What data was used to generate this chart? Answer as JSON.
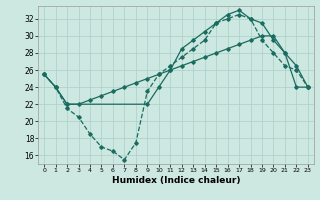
{
  "xlabel": "Humidex (Indice chaleur)",
  "bg_color": "#cce8e0",
  "grid_color": "#aacfc8",
  "line_color": "#1a6b60",
  "xlim": [
    -0.5,
    23.5
  ],
  "ylim": [
    15,
    33.5
  ],
  "xticks": [
    0,
    1,
    2,
    3,
    4,
    5,
    6,
    7,
    8,
    9,
    10,
    11,
    12,
    13,
    14,
    15,
    16,
    17,
    18,
    19,
    20,
    21,
    22,
    23
  ],
  "yticks": [
    16,
    18,
    20,
    22,
    24,
    26,
    28,
    30,
    32
  ],
  "line1_x": [
    0,
    1,
    2,
    3,
    4,
    5,
    6,
    7,
    8,
    9,
    10,
    11,
    12,
    13,
    14,
    15,
    16,
    17,
    18,
    19,
    20,
    21,
    22,
    23
  ],
  "line1_y": [
    25.5,
    24.0,
    21.5,
    20.5,
    18.5,
    17.0,
    16.5,
    15.5,
    17.5,
    23.5,
    25.5,
    26.5,
    27.5,
    28.5,
    29.5,
    31.5,
    32.0,
    32.5,
    32.0,
    29.5,
    28.0,
    26.5,
    26.0,
    24.0
  ],
  "line2_x": [
    0,
    1,
    2,
    3,
    4,
    5,
    6,
    7,
    8,
    9,
    10,
    11,
    12,
    13,
    14,
    15,
    16,
    17,
    18,
    19,
    20,
    21,
    22,
    23
  ],
  "line2_y": [
    25.5,
    24.0,
    22.0,
    22.0,
    22.5,
    23.0,
    23.5,
    24.0,
    24.5,
    25.0,
    25.5,
    26.0,
    26.5,
    27.0,
    27.5,
    28.0,
    28.5,
    29.0,
    29.5,
    30.0,
    30.0,
    28.0,
    24.0,
    24.0
  ],
  "line3_x": [
    0,
    1,
    2,
    9,
    10,
    11,
    12,
    13,
    14,
    15,
    16,
    17,
    18,
    19,
    20,
    21,
    22,
    23
  ],
  "line3_y": [
    25.5,
    24.0,
    22.0,
    22.0,
    24.0,
    26.0,
    28.5,
    29.5,
    30.5,
    31.5,
    32.5,
    33.0,
    32.0,
    31.5,
    29.5,
    28.0,
    26.5,
    24.0
  ]
}
